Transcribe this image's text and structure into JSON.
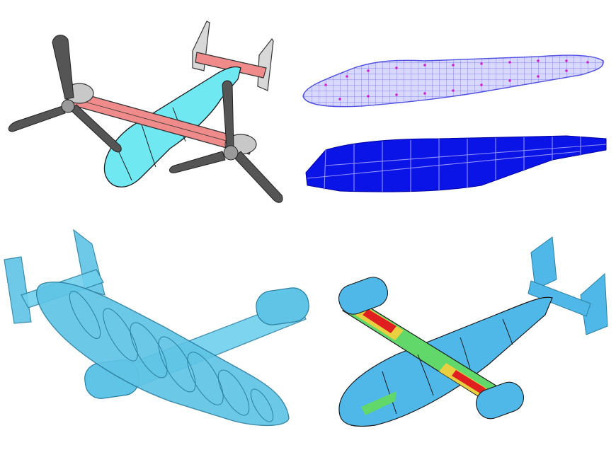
{
  "figure": {
    "panels": [
      {
        "id": "cad-model",
        "colors": {
          "fuselage": "#6fe8f2",
          "wing": "#f08b8b",
          "rotor": "#5a5a5a",
          "outline": "#2a2a2a"
        }
      },
      {
        "id": "fuselage-meshes",
        "colors": {
          "wireframe": "#6f6ff0",
          "nodes": "#d020d0",
          "solid": "#0a14e6",
          "frames": "#9090ff"
        }
      },
      {
        "id": "aircraft-mesh",
        "colors": {
          "body": "#5fc4e6",
          "lines": "#2a7fa0"
        }
      },
      {
        "id": "stress-field",
        "colors": {
          "low": "#4fb8e8",
          "mid": "#63d86a",
          "high": "#e8d040",
          "peak": "#e02020"
        }
      }
    ]
  }
}
